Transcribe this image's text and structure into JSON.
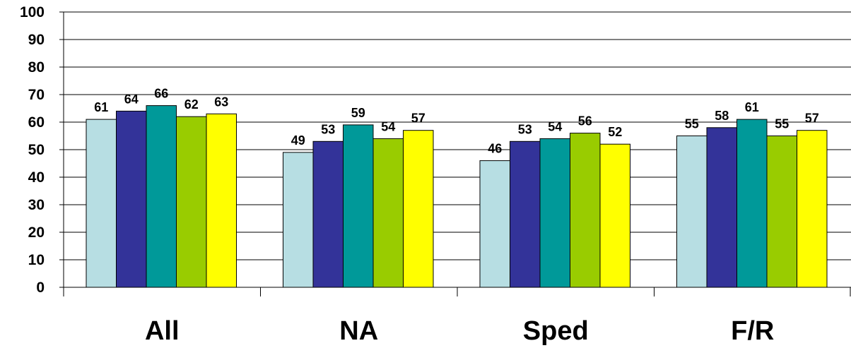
{
  "chart_data": {
    "type": "bar",
    "title": "",
    "xlabel": "",
    "ylabel": "",
    "ylim": [
      0,
      100
    ],
    "yticks": [
      0,
      10,
      20,
      30,
      40,
      50,
      60,
      70,
      80,
      90,
      100
    ],
    "grid": true,
    "legend": "none",
    "categories": [
      "All",
      "NA",
      "Sped",
      "F/R"
    ],
    "series": [
      {
        "color": "#b7dee3",
        "values": [
          61,
          49,
          46,
          55
        ]
      },
      {
        "color": "#333399",
        "values": [
          64,
          53,
          53,
          58
        ]
      },
      {
        "color": "#009999",
        "values": [
          66,
          59,
          54,
          61
        ]
      },
      {
        "color": "#99cc00",
        "values": [
          62,
          54,
          56,
          55
        ]
      },
      {
        "color": "#ffff00",
        "values": [
          63,
          57,
          52,
          57
        ]
      }
    ]
  }
}
